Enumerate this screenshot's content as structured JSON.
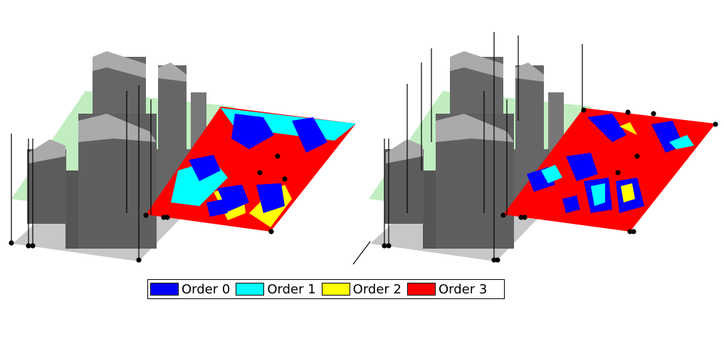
{
  "legend": {
    "items": [
      {
        "label": "Order 0",
        "color": "#0000ff"
      },
      {
        "label": "Order 1",
        "color": "#00ffff"
      },
      {
        "label": "Order 2",
        "color": "#ffff00"
      },
      {
        "label": "Order 3",
        "color": "#ff0000"
      }
    ]
  },
  "colors": {
    "building": "#6e6e6e",
    "building_top": "#a9a9a9",
    "ground": "#c7c7c7",
    "ray_plane": "#9fe3a0",
    "antenna": "#000000"
  },
  "panels": [
    {
      "name": "left-panel",
      "description_hidden": true
    },
    {
      "name": "right-panel",
      "description_hidden": true
    }
  ]
}
